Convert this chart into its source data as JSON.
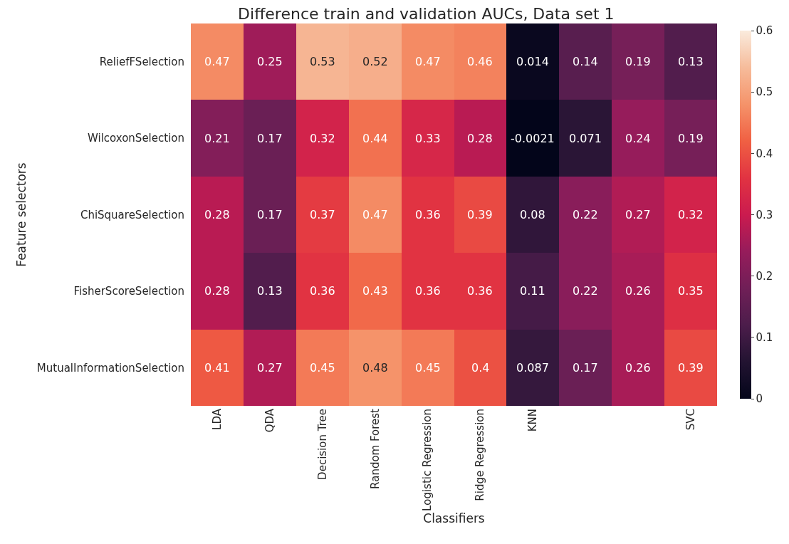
{
  "chart_data": {
    "type": "heatmap",
    "title": "Difference train and validation AUCs, Data set 1",
    "xlabel": "Classifiers",
    "ylabel": "Feature selectors",
    "categories": [
      "LDA",
      "QDA",
      "Decision Tree",
      "Random Forest",
      "Logistic Regression",
      "Ridge Regression",
      "KNN",
      null,
      null,
      "SVC"
    ],
    "y_categories": [
      "ReliefFSelection",
      "WilcoxonSelection",
      "ChiSquareSelection",
      "FisherScoreSelection",
      "MutualInformationSelection"
    ],
    "cells": [
      [
        0.47,
        0.25,
        0.53,
        0.52,
        0.47,
        0.46,
        0.014,
        0.14,
        0.19,
        0.13
      ],
      [
        0.21,
        0.17,
        0.32,
        0.44,
        0.33,
        0.28,
        -0.0021,
        0.071,
        0.24,
        0.19
      ],
      [
        0.28,
        0.17,
        0.37,
        0.47,
        0.36,
        0.39,
        0.08,
        0.22,
        0.27,
        0.32
      ],
      [
        0.28,
        0.13,
        0.36,
        0.43,
        0.36,
        0.36,
        0.11,
        0.22,
        0.26,
        0.35
      ],
      [
        0.41,
        0.27,
        0.45,
        0.48,
        0.45,
        0.4,
        0.087,
        0.17,
        0.26,
        0.39
      ]
    ],
    "data_labels": true,
    "clim": [
      0,
      0.6
    ],
    "cticks": [
      0,
      0.1,
      0.2,
      0.3,
      0.4,
      0.5,
      0.6
    ]
  }
}
